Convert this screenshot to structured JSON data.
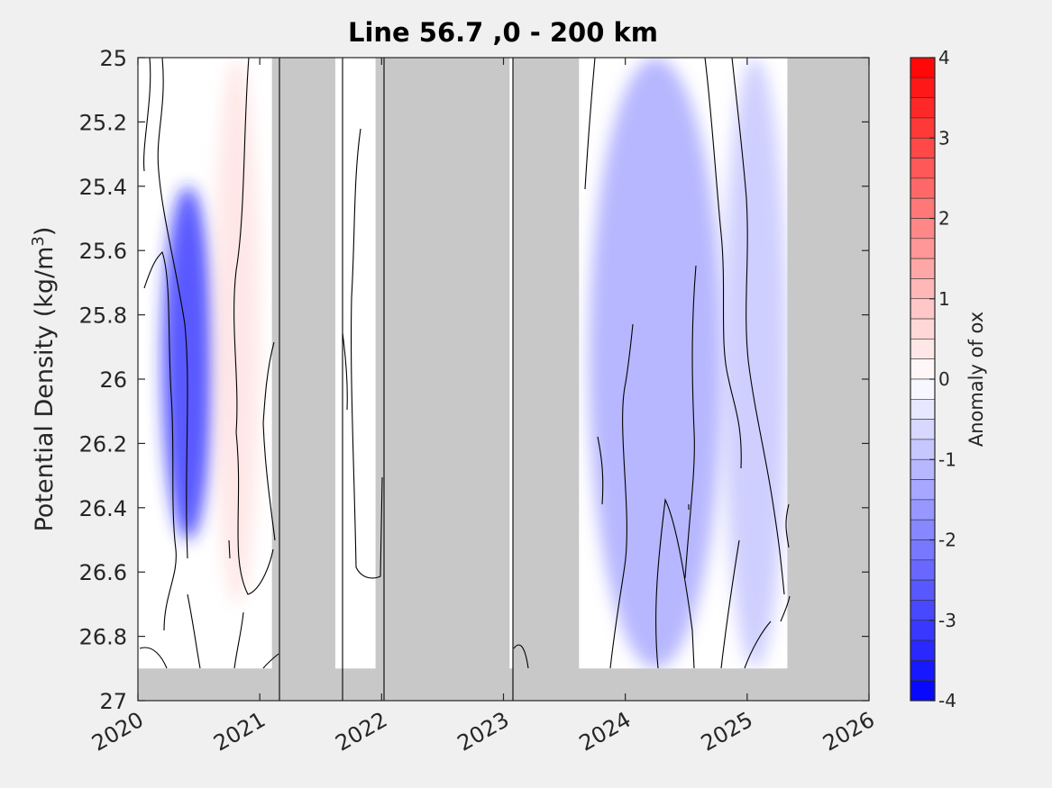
{
  "chart_data": {
    "type": "heatmap",
    "title": "Line 56.7 ,0 - 200 km",
    "ylabel_main": "Potential Density (kg/m",
    "ylabel_sup": "3",
    "ylabel_close": ")",
    "colorbar_label": "Anomaly of ox",
    "x_ticks": [
      2020,
      2021,
      2022,
      2023,
      2024,
      2025,
      2026
    ],
    "xlim": [
      2020.0,
      2026.0
    ],
    "y_ticks": [
      25,
      25.2,
      25.4,
      25.6,
      25.8,
      26,
      26.2,
      26.4,
      26.6,
      26.8,
      27
    ],
    "y_tick_labels": [
      "25",
      "25.2",
      "25.4",
      "25.6",
      "25.8",
      "26",
      "26.2",
      "26.4",
      "26.6",
      "26.8",
      "27"
    ],
    "ylim": [
      25,
      27
    ],
    "y_reversed": true,
    "colorbar_ticks": [
      4,
      3,
      2,
      1,
      0,
      -1,
      -2,
      -3,
      -4
    ],
    "colorbar_tick_labels": [
      "4",
      "3",
      "2",
      "1",
      "0",
      "-1",
      "-2",
      "-3",
      "-4"
    ],
    "colorbar_range": [
      -4,
      4
    ],
    "colorbar_levels": 32,
    "no_data_intervals": [
      [
        2021.1,
        2021.62
      ],
      [
        2021.95,
        2023.05
      ],
      [
        2023.08,
        2023.62
      ],
      [
        2025.33,
        2026.0
      ]
    ],
    "bottom_no_data_above_density": 26.9,
    "anomaly_features": [
      {
        "time": [
          2020.2,
          2020.62
        ],
        "density": [
          25.4,
          26.5
        ],
        "peak_value": -3.5
      },
      {
        "time": [
          2020.62,
          2021.0
        ],
        "density": [
          25.0,
          26.7
        ],
        "peak_value": 0.5
      },
      {
        "time": [
          2023.7,
          2024.8
        ],
        "density": [
          25.0,
          26.9
        ],
        "peak_value": -1.5
      },
      {
        "time": [
          2024.8,
          2025.33
        ],
        "density": [
          25.0,
          26.9
        ],
        "peak_value": -1.0
      }
    ],
    "colors": {
      "positive": "#ff0000",
      "negative": "#0000ff",
      "no_data": "#c8c8c8",
      "background": "#f0f0f0"
    }
  }
}
